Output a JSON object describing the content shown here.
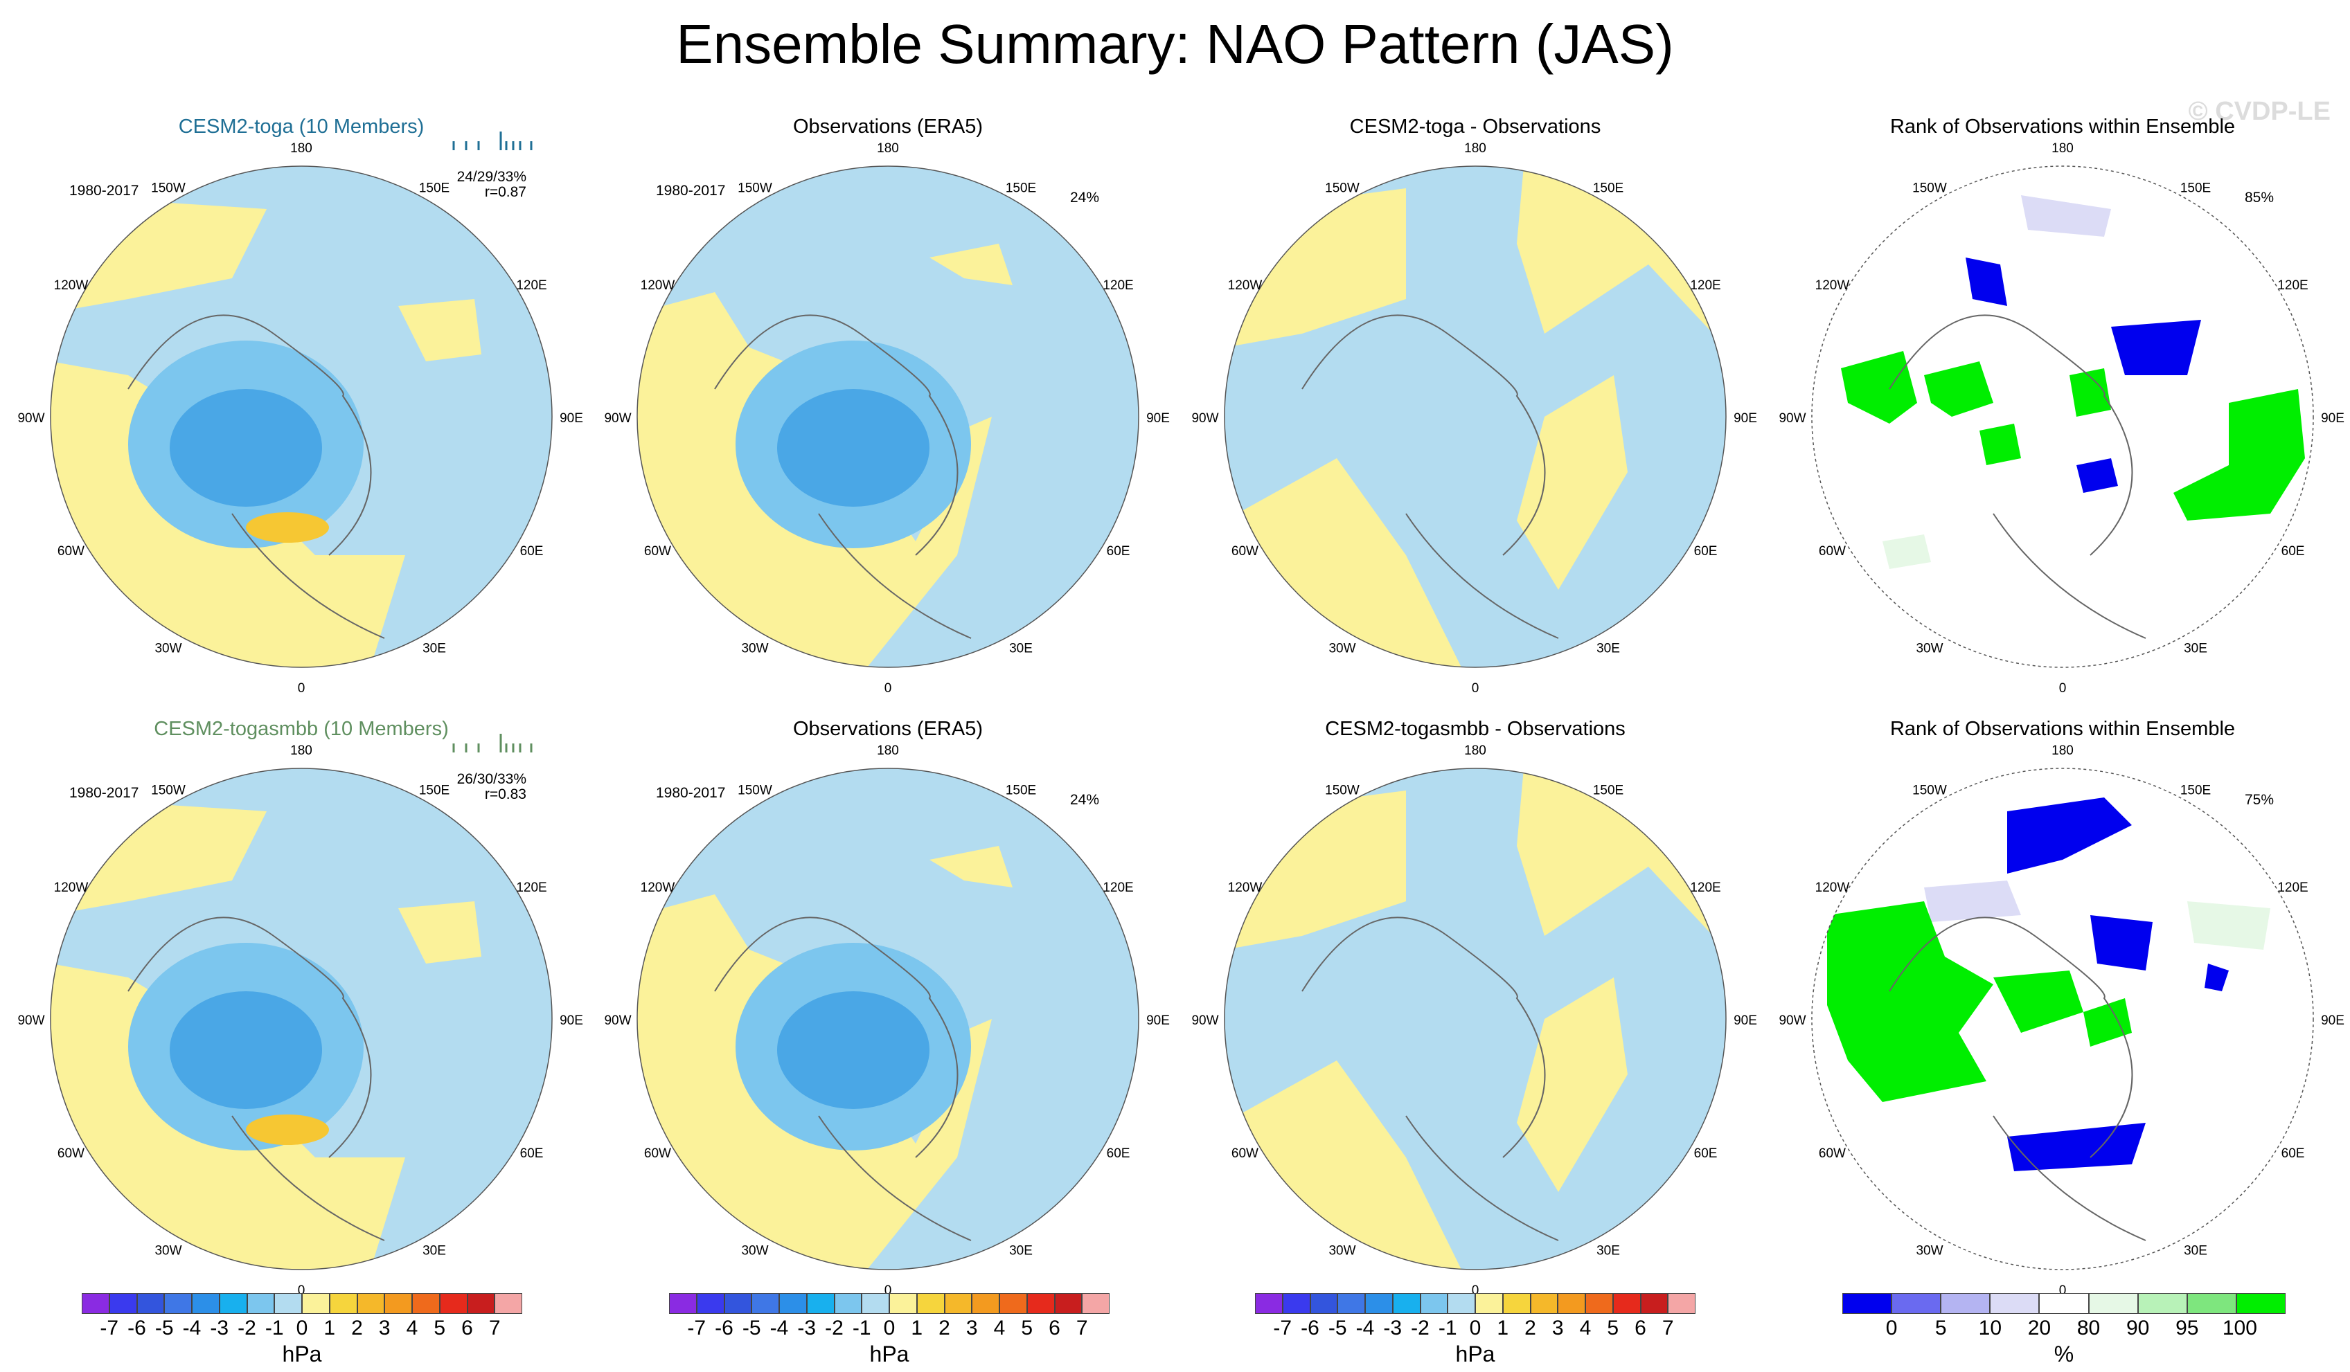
{
  "title": "Ensemble Summary: NAO Pattern (JAS)",
  "watermark": "© CVDP-LE",
  "colors": {
    "blue_light": "#b3dcf0",
    "blue_mid": "#7cc6ee",
    "blue_dark": "#4aa7e6",
    "yellow": "#fbf29a",
    "orange": "#f6c733",
    "green": "#00ee00",
    "rank_blue": "#0000ee",
    "lavender": "#dcdcf6",
    "mint": "#e6f8e6"
  },
  "lon_labels": [
    "180",
    "150E",
    "120E",
    "90E",
    "60E",
    "30E",
    "0",
    "30W",
    "60W",
    "90W",
    "120W",
    "150W"
  ],
  "panels": [
    {
      "title": "CESM2-toga (10 Members)",
      "title_color": "#1f6f95",
      "period": "1980-2017",
      "pct": "24/29/33%",
      "corr": "r=0.87",
      "kind": "model"
    },
    {
      "title": "Observations (ERA5)",
      "title_color": "#000000",
      "period": "1980-2017",
      "pct": "24%",
      "corr": "",
      "kind": "obs"
    },
    {
      "title": "CESM2-toga - Observations",
      "title_color": "#000000",
      "period": "",
      "pct": "",
      "corr": "",
      "kind": "diff"
    },
    {
      "title": "Rank of Observations within Ensemble",
      "title_color": "#000000",
      "period": "",
      "pct": "85%",
      "corr": "",
      "kind": "rank"
    },
    {
      "title": "CESM2-togasmbb (10 Members)",
      "title_color": "#5f8f5f",
      "period": "1980-2017",
      "pct": "26/30/33%",
      "corr": "r=0.83",
      "kind": "model"
    },
    {
      "title": "Observations (ERA5)",
      "title_color": "#000000",
      "period": "1980-2017",
      "pct": "24%",
      "corr": "",
      "kind": "obs"
    },
    {
      "title": "CESM2-togasmbb - Observations",
      "title_color": "#000000",
      "period": "",
      "pct": "",
      "corr": "",
      "kind": "diff"
    },
    {
      "title": "Rank of Observations within Ensemble",
      "title_color": "#000000",
      "period": "",
      "pct": "75%",
      "corr": "",
      "kind": "rank"
    }
  ],
  "colorbars": [
    {
      "units": "hPa",
      "labels": [
        "-7",
        "-6",
        "-5",
        "-4",
        "-3",
        "-2",
        "-1",
        "0",
        "1",
        "2",
        "3",
        "4",
        "5",
        "6",
        "7"
      ],
      "colors": [
        "#8a2be2",
        "#3a3aee",
        "#3355dd",
        "#3f77e6",
        "#2c8fe8",
        "#18b0ee",
        "#7cc6ee",
        "#b3dcf0",
        "#fbf29a",
        "#f6d53d",
        "#f5b82a",
        "#f39a1f",
        "#ef6a1c",
        "#e62a1c",
        "#c81e1e",
        "#f4a6a6"
      ]
    },
    {
      "units": "hPa",
      "labels": [
        "-7",
        "-6",
        "-5",
        "-4",
        "-3",
        "-2",
        "-1",
        "0",
        "1",
        "2",
        "3",
        "4",
        "5",
        "6",
        "7"
      ],
      "colors": [
        "#8a2be2",
        "#3a3aee",
        "#3355dd",
        "#3f77e6",
        "#2c8fe8",
        "#18b0ee",
        "#7cc6ee",
        "#b3dcf0",
        "#fbf29a",
        "#f6d53d",
        "#f5b82a",
        "#f39a1f",
        "#ef6a1c",
        "#e62a1c",
        "#c81e1e",
        "#f4a6a6"
      ]
    },
    {
      "units": "hPa",
      "labels": [
        "-7",
        "-6",
        "-5",
        "-4",
        "-3",
        "-2",
        "-1",
        "0",
        "1",
        "2",
        "3",
        "4",
        "5",
        "6",
        "7"
      ],
      "colors": [
        "#8a2be2",
        "#3a3aee",
        "#3355dd",
        "#3f77e6",
        "#2c8fe8",
        "#18b0ee",
        "#7cc6ee",
        "#b3dcf0",
        "#fbf29a",
        "#f6d53d",
        "#f5b82a",
        "#f39a1f",
        "#ef6a1c",
        "#e62a1c",
        "#c81e1e",
        "#f4a6a6"
      ]
    },
    {
      "units": "%",
      "labels": [
        "0",
        "5",
        "10",
        "20",
        "80",
        "90",
        "95",
        "100"
      ],
      "colors": [
        "#0000ee",
        "#6a6af0",
        "#b4b4f2",
        "#dcdcf6",
        "#ffffff",
        "#e6f8e6",
        "#b8f2b8",
        "#7ee67e",
        "#00ee00"
      ]
    }
  ],
  "chart_data": {
    "type": "heatmap",
    "title": "Ensemble Summary: NAO Pattern (JAS)",
    "projection": "north polar stereographic",
    "units": "hPa",
    "color_levels_hPa": [
      -7,
      -6,
      -5,
      -4,
      -3,
      -2,
      -1,
      0,
      1,
      2,
      3,
      4,
      5,
      6,
      7
    ],
    "rank_levels_pct": [
      0,
      5,
      10,
      20,
      80,
      90,
      95,
      100
    ],
    "panels": [
      {
        "name": "CESM2-toga (10 Members)",
        "period": "1980-2017",
        "pct_variance": [
          24,
          29,
          33
        ],
        "pattern_corr": 0.87,
        "min_hPa": -3,
        "max_hPa": 2
      },
      {
        "name": "Observations (ERA5)",
        "period": "1980-2017",
        "pct_variance": [
          24
        ],
        "min_hPa": -2,
        "max_hPa": 1
      },
      {
        "name": "CESM2-toga - Observations",
        "min_hPa": -1,
        "max_hPa": 1
      },
      {
        "name": "Rank of Observations within Ensemble",
        "pct_area": 85
      },
      {
        "name": "CESM2-togasmbb (10 Members)",
        "period": "1980-2017",
        "pct_variance": [
          26,
          30,
          33
        ],
        "pattern_corr": 0.83,
        "min_hPa": -3,
        "max_hPa": 2
      },
      {
        "name": "Observations (ERA5)",
        "period": "1980-2017",
        "pct_variance": [
          24
        ],
        "min_hPa": -2,
        "max_hPa": 1
      },
      {
        "name": "CESM2-togasmbb - Observations",
        "min_hPa": -1,
        "max_hPa": 1
      },
      {
        "name": "Rank of Observations within Ensemble",
        "pct_area": 75
      }
    ]
  }
}
